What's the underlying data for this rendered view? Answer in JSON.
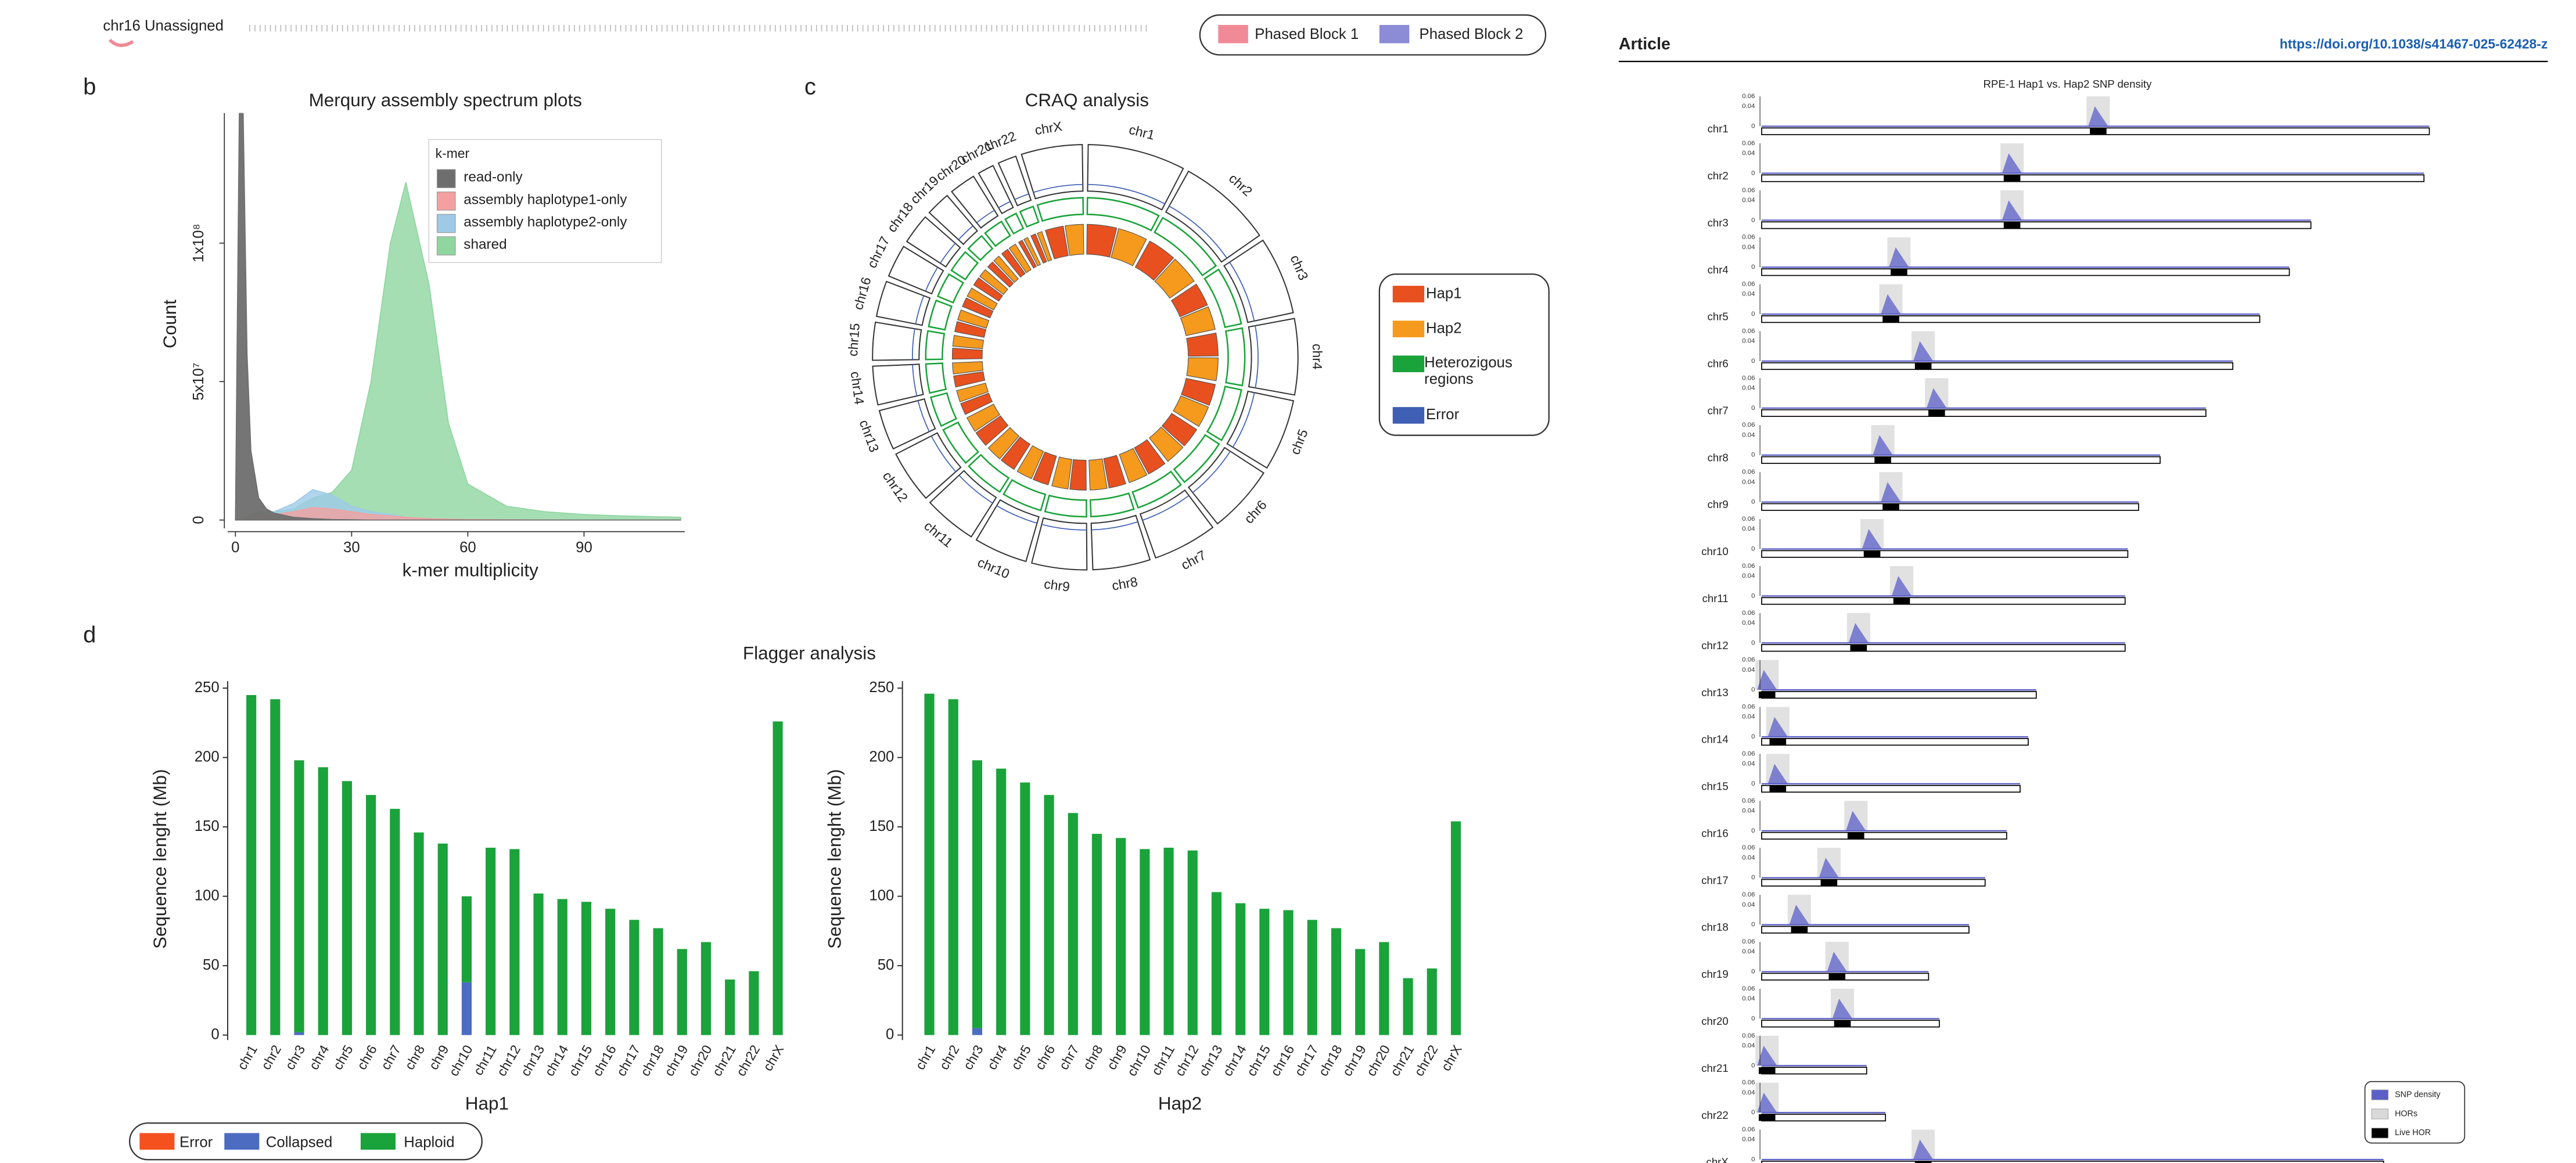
{
  "header": {
    "label": "chr16 Unassigned",
    "legend": [
      {
        "name": "Phased Block 1",
        "color": "#f08a96"
      },
      {
        "name": "Phased Block 2",
        "color": "#8b8bd6"
      }
    ]
  },
  "panels": [
    "b",
    "c",
    "d"
  ],
  "article": {
    "label": "Article",
    "doi": "https://doi.org/10.1038/s41467-025-62428-z"
  },
  "chart_data": [
    {
      "type": "area",
      "title": "Merqury assembly spectrum plots",
      "x_label": "k-mer multiplicity",
      "y_label": "Count",
      "legend_title": "k-mer",
      "x": [
        0,
        1,
        2,
        3,
        4,
        6,
        8,
        10,
        15,
        20,
        25,
        30,
        35,
        40,
        44,
        50,
        55,
        60,
        70,
        80,
        90,
        100,
        115
      ],
      "series": [
        {
          "name": "read-only",
          "color": "#6e6e6e",
          "values": [
            0,
            147000000,
            147000000,
            60000000,
            25000000,
            8000000,
            4000000,
            2500000,
            1000000,
            500000,
            200000,
            100000,
            0,
            0,
            0,
            0,
            0,
            0,
            0,
            0,
            0,
            0,
            0
          ]
        },
        {
          "name": "assembly haplotype1-only",
          "color": "#f4a0a0",
          "values": [
            0,
            0,
            0,
            1000000,
            1500000,
            2000000,
            2000000,
            2000000,
            3000000,
            4500000,
            4000000,
            3000000,
            2000000,
            1500000,
            1000000,
            500000,
            300000,
            200000,
            100000,
            0,
            0,
            0,
            0
          ]
        },
        {
          "name": "assembly haplotype2-only",
          "color": "#9ecae8",
          "values": [
            0,
            0,
            0,
            1000000,
            1500000,
            2000000,
            2500000,
            3000000,
            6000000,
            11000000,
            9000000,
            5000000,
            3000000,
            2000000,
            1000000,
            500000,
            300000,
            200000,
            100000,
            0,
            0,
            0,
            0
          ]
        },
        {
          "name": "shared",
          "color": "#8fd6a0",
          "values": [
            0,
            0,
            0,
            1000000,
            2000000,
            3000000,
            3000000,
            3000000,
            4000000,
            8000000,
            10000000,
            18000000,
            50000000,
            100000000,
            122000000,
            85000000,
            35000000,
            13000000,
            5000000,
            3000000,
            2000000,
            1500000,
            1000000
          ]
        }
      ],
      "xlim": [
        -2,
        116
      ],
      "xticks": [
        0,
        30,
        60,
        90
      ],
      "ylim": [
        -3000000,
        147000000
      ],
      "yticks": [
        0,
        {
          "value": 50000000,
          "label": "5x10⁷"
        },
        {
          "value": 100000000,
          "label": "1x10⁸"
        }
      ]
    },
    {
      "type": "radial",
      "title": "CRAQ analysis",
      "categories": [
        "chr1",
        "chr2",
        "chr3",
        "chr4",
        "chr5",
        "chr6",
        "chr7",
        "chr8",
        "chr9",
        "chr10",
        "chr11",
        "chr12",
        "chr13",
        "chr14",
        "chr15",
        "chr16",
        "chr17",
        "chr18",
        "chr19",
        "chr20",
        "chr21",
        "chr22",
        "chrX"
      ],
      "values": [
        248,
        242,
        198,
        193,
        182,
        173,
        163,
        146,
        140,
        136,
        135,
        134,
        102,
        98,
        96,
        91,
        83,
        77,
        62,
        67,
        41,
        47,
        155
      ],
      "legend": [
        {
          "name": "Hap1",
          "color": "#e8501f"
        },
        {
          "name": "Hap2",
          "color": "#f59a1c"
        },
        {
          "name": "Heterozigous regions",
          "color": "#1aa33a"
        },
        {
          "name": "Error",
          "color": "#3f5fb5"
        }
      ]
    },
    {
      "type": "stacked_bar",
      "title": "Flagger analysis",
      "x_label": "Hap1",
      "y_label": "Sequence lenght (Mb)",
      "categories": [
        "chr1",
        "chr2",
        "chr3",
        "chr4",
        "chr5",
        "chr6",
        "chr7",
        "chr8",
        "chr9",
        "chr10",
        "chr11",
        "chr12",
        "chr13",
        "chr14",
        "chr15",
        "chr16",
        "chr17",
        "chr18",
        "chr19",
        "chr20",
        "chr21",
        "chr22",
        "chrX"
      ],
      "series": [
        {
          "name": "Error",
          "color": "#f4511e",
          "values": [
            0,
            0,
            0,
            0,
            0,
            0,
            0,
            0,
            0,
            0,
            0,
            0,
            0,
            0,
            0,
            0,
            0,
            0,
            0,
            0,
            0,
            0,
            0
          ]
        },
        {
          "name": "Collapsed",
          "color": "#4c6cc1",
          "values": [
            0,
            0,
            2,
            0,
            0,
            0,
            0,
            0,
            0,
            38,
            0,
            0,
            0,
            0,
            0,
            0,
            0,
            0,
            0,
            0,
            0,
            0,
            0
          ]
        },
        {
          "name": "Haploid",
          "color": "#1aa33a",
          "values": [
            245,
            242,
            196,
            193,
            183,
            173,
            163,
            146,
            138,
            62,
            135,
            134,
            102,
            98,
            96,
            91,
            83,
            77,
            62,
            67,
            40,
            46,
            226
          ]
        }
      ],
      "ylim": [
        0,
        255
      ],
      "yticks": [
        0,
        50,
        100,
        150,
        200,
        250
      ]
    },
    {
      "type": "stacked_bar",
      "x_label": "Hap2",
      "y_label": "Sequence lenght (Mb)",
      "categories": [
        "chr1",
        "chr2",
        "chr3",
        "chr4",
        "chr5",
        "chr6",
        "chr7",
        "chr8",
        "chr9",
        "chr10",
        "chr11",
        "chr12",
        "chr13",
        "chr14",
        "chr15",
        "chr16",
        "chr17",
        "chr18",
        "chr19",
        "chr20",
        "chr21",
        "chr22",
        "chrX"
      ],
      "series": [
        {
          "color": "#f4511e",
          "values": [
            0,
            0,
            0,
            0,
            0,
            0,
            0,
            0,
            0,
            0,
            0,
            0,
            0,
            0,
            0,
            0,
            0,
            0,
            0,
            0,
            0,
            0,
            0
          ]
        },
        {
          "color": "#4c6cc1",
          "values": [
            0,
            0,
            5,
            0,
            0,
            0,
            0,
            0,
            0,
            0,
            0,
            0,
            0,
            0,
            0,
            0,
            0,
            0,
            0,
            0,
            0,
            0,
            0
          ]
        },
        {
          "color": "#1aa33a",
          "values": [
            246,
            242,
            193,
            192,
            182,
            173,
            160,
            145,
            142,
            134,
            135,
            133,
            103,
            95,
            91,
            90,
            83,
            77,
            62,
            67,
            41,
            48,
            154
          ]
        }
      ],
      "ylim": [
        0,
        255
      ],
      "yticks": [
        0,
        50,
        100,
        150,
        200,
        250
      ]
    },
    {
      "type": "ideogram",
      "title": "RPE-1 Hap1 vs. Hap2 SNP density",
      "categories": [
        "chr1",
        "chr2",
        "chr3",
        "chr4",
        "chr5",
        "chr6",
        "chr7",
        "chr8",
        "chr9",
        "chr10",
        "chr11",
        "chr12",
        "chr13",
        "chr14",
        "chr15",
        "chr16",
        "chr17",
        "chr18",
        "chr19",
        "chr20",
        "chr21",
        "chr22",
        "chrX"
      ],
      "values": [
        248,
        246,
        204,
        196,
        185,
        175,
        165,
        148,
        140,
        136,
        135,
        135,
        102,
        99,
        96,
        91,
        83,
        77,
        62,
        66,
        39,
        46,
        231
      ],
      "centromeres": [
        125,
        93,
        93,
        51,
        48,
        60,
        65,
        45,
        48,
        41,
        52,
        36,
        2,
        6,
        6,
        35,
        25,
        14,
        28,
        30,
        2,
        2,
        60
      ],
      "ylim": [
        0,
        0.06
      ],
      "yticks": [
        0,
        0.04,
        0.06
      ],
      "legend": [
        {
          "name": "SNP density",
          "color": "#5b5fc7"
        },
        {
          "name": "HORs",
          "color": "#d9d9d9"
        },
        {
          "name": "Live HOR",
          "color": "#000000"
        }
      ]
    }
  ]
}
